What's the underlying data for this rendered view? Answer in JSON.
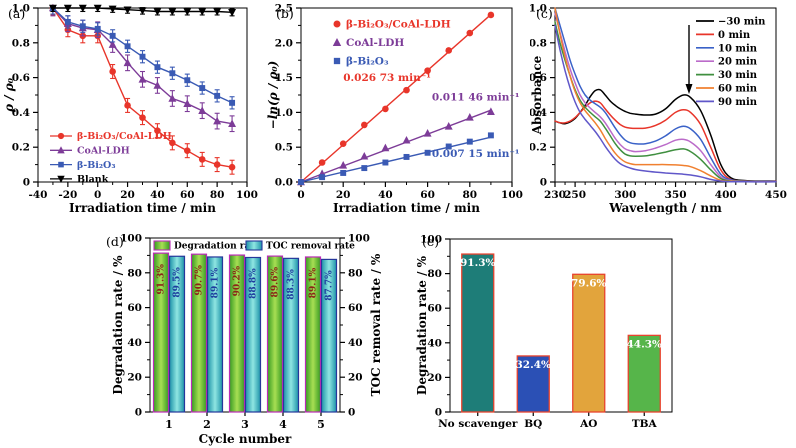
{
  "figure": {
    "background": "#ffffff"
  },
  "chart_data": [
    {
      "id": "a",
      "label": "(a)",
      "type": "line",
      "kind": "xy",
      "xlabel": "Irradiation time / min",
      "ylabel": "ρ / ρ₀",
      "xlim": [
        -40,
        100
      ],
      "ylim": [
        0,
        1.0
      ],
      "xticks": [
        -40,
        -20,
        0,
        20,
        40,
        60,
        80,
        100
      ],
      "xtick_labels": [
        "-40",
        "-20",
        "0",
        "20",
        "40",
        "60",
        "80",
        "100"
      ],
      "yticks": [
        0,
        0.2,
        0.4,
        0.6,
        0.8,
        1.0
      ],
      "ytick_labels": [
        "0",
        "0.2",
        "0.4",
        "0.6",
        "0.8",
        "1.0"
      ],
      "x": [
        -30,
        -20,
        -10,
        0,
        10,
        20,
        30,
        40,
        50,
        60,
        70,
        80,
        90
      ],
      "series": [
        {
          "name": "β-Bi₂O₃/CoAl-LDH",
          "color": "#e8352a",
          "marker": "circle",
          "values": [
            1.0,
            0.875,
            0.84,
            0.84,
            0.635,
            0.44,
            0.37,
            0.295,
            0.225,
            0.18,
            0.13,
            0.1,
            0.085
          ],
          "err": 0.04
        },
        {
          "name": "CoAl-LDH",
          "color": "#7d3c98",
          "marker": "triangle-up",
          "values": [
            1.0,
            0.91,
            0.885,
            0.875,
            0.79,
            0.685,
            0.59,
            0.555,
            0.48,
            0.45,
            0.41,
            0.35,
            0.335
          ],
          "err": 0.045
        },
        {
          "name": "β-Bi₂O₃",
          "color": "#3a5ab4",
          "marker": "square",
          "values": [
            1.0,
            0.92,
            0.895,
            0.88,
            0.84,
            0.78,
            0.72,
            0.66,
            0.625,
            0.585,
            0.54,
            0.495,
            0.455
          ],
          "err": 0.035
        },
        {
          "name": "Blank",
          "color": "#000000",
          "marker": "triangle-down",
          "values": [
            1.0,
            1.0,
            1.0,
            1.0,
            0.995,
            0.99,
            0.985,
            0.98,
            0.98,
            0.98,
            0.98,
            0.98,
            0.975
          ],
          "err": 0.02
        }
      ]
    },
    {
      "id": "b",
      "label": "(b)",
      "type": "line",
      "kind": "xy",
      "xlabel": "Irradiation time / min",
      "ylabel": "−ln(ρ / ρ₀)",
      "xlim": [
        0,
        100
      ],
      "ylim": [
        0,
        2.5
      ],
      "xticks": [
        0,
        20,
        40,
        60,
        80,
        100
      ],
      "xtick_labels": [
        "0",
        "20",
        "40",
        "60",
        "80",
        "100"
      ],
      "yticks": [
        0,
        0.5,
        1.0,
        1.5,
        2.0,
        2.5
      ],
      "ytick_labels": [
        "0.0",
        "0.5",
        "1.0",
        "1.5",
        "2.0",
        "2.5"
      ],
      "x": [
        0,
        10,
        20,
        30,
        40,
        50,
        60,
        70,
        80,
        90
      ],
      "series": [
        {
          "name": "β-Bi₂O₃/CoAl-LDH",
          "color": "#e8352a",
          "marker": "circle",
          "values": [
            0,
            0.28,
            0.55,
            0.82,
            1.05,
            1.32,
            1.6,
            1.89,
            2.14,
            2.4
          ],
          "fit_slope": 0.02673
        },
        {
          "name": "CoAl-LDH",
          "color": "#7d3c98",
          "marker": "triangle-up",
          "values": [
            0,
            0.12,
            0.24,
            0.37,
            0.49,
            0.6,
            0.7,
            0.8,
            0.93,
            1.01
          ],
          "fit_slope": 0.01146
        },
        {
          "name": "β-Bi₂O₃",
          "color": "#3a5ab4",
          "marker": "square",
          "values": [
            0,
            0.07,
            0.13,
            0.2,
            0.28,
            0.36,
            0.42,
            0.51,
            0.58,
            0.67
          ],
          "fit_slope": 0.00715
        }
      ],
      "annotations": [
        {
          "text": "0.026 73 min⁻¹",
          "x": 20,
          "y": 1.45,
          "color": "#e8352a"
        },
        {
          "text": "0.011 46 min⁻¹",
          "x": 62,
          "y": 1.17,
          "color": "#7d3c98"
        },
        {
          "text": "0.007 15 min⁻¹",
          "x": 62,
          "y": 0.36,
          "color": "#3a5ab4"
        }
      ]
    },
    {
      "id": "c",
      "label": "(c)",
      "type": "line",
      "kind": "spectra",
      "xlabel": "Wavelength / nm",
      "ylabel": "Absorbance",
      "xlim": [
        230,
        450
      ],
      "ylim": [
        0,
        1.0
      ],
      "xticks": [
        230,
        250,
        300,
        350,
        400,
        450
      ],
      "xtick_labels": [
        "230",
        "250",
        "300",
        "350",
        "400",
        "450"
      ],
      "yticks": [
        0,
        0.2,
        0.4,
        0.6,
        0.8,
        1.0
      ],
      "ytick_labels": [
        "0",
        "0.2",
        "0.4",
        "0.6",
        "0.8",
        "1.0"
      ],
      "x": [
        230,
        235,
        240,
        245,
        250,
        255,
        260,
        265,
        270,
        275,
        280,
        285,
        290,
        295,
        300,
        305,
        310,
        320,
        330,
        340,
        350,
        358,
        365,
        375,
        385,
        395,
        405,
        420,
        450
      ],
      "curves": [
        {
          "name": "−30 min",
          "color": "#000000",
          "values": [
            0.35,
            0.34,
            0.335,
            0.345,
            0.365,
            0.4,
            0.44,
            0.49,
            0.525,
            0.53,
            0.5,
            0.465,
            0.44,
            0.42,
            0.405,
            0.395,
            0.39,
            0.385,
            0.39,
            0.42,
            0.475,
            0.5,
            0.485,
            0.41,
            0.27,
            0.1,
            0.025,
            0.008,
            0.005
          ]
        },
        {
          "name": "0 min",
          "color": "#e8352a",
          "values": [
            0.35,
            0.34,
            0.34,
            0.35,
            0.37,
            0.4,
            0.43,
            0.455,
            0.465,
            0.455,
            0.42,
            0.385,
            0.355,
            0.33,
            0.315,
            0.31,
            0.308,
            0.31,
            0.325,
            0.355,
            0.4,
            0.415,
            0.4,
            0.33,
            0.2,
            0.07,
            0.015,
            0.006,
            0.004
          ]
        },
        {
          "name": "10 min",
          "color": "#3a62c8",
          "values": [
            1.0,
            0.9,
            0.8,
            0.7,
            0.62,
            0.55,
            0.5,
            0.47,
            0.45,
            0.43,
            0.4,
            0.355,
            0.31,
            0.27,
            0.24,
            0.225,
            0.22,
            0.22,
            0.235,
            0.265,
            0.305,
            0.32,
            0.305,
            0.245,
            0.14,
            0.045,
            0.012,
            0.005,
            0.003
          ]
        },
        {
          "name": "20 min",
          "color": "#bb6bc9",
          "values": [
            0.97,
            0.86,
            0.75,
            0.65,
            0.57,
            0.5,
            0.455,
            0.425,
            0.4,
            0.375,
            0.34,
            0.295,
            0.25,
            0.215,
            0.19,
            0.18,
            0.175,
            0.18,
            0.195,
            0.215,
            0.24,
            0.245,
            0.23,
            0.18,
            0.1,
            0.03,
            0.008,
            0.004,
            0.002
          ]
        },
        {
          "name": "30 min",
          "color": "#3f8f3f",
          "values": [
            0.92,
            0.8,
            0.7,
            0.61,
            0.53,
            0.47,
            0.43,
            0.4,
            0.375,
            0.35,
            0.31,
            0.265,
            0.22,
            0.185,
            0.16,
            0.15,
            0.148,
            0.15,
            0.16,
            0.172,
            0.185,
            0.19,
            0.175,
            0.13,
            0.07,
            0.02,
            0.006,
            0.003,
            0.002
          ]
        },
        {
          "name": "60 min",
          "color": "#f08030",
          "values": [
            1.0,
            0.85,
            0.72,
            0.61,
            0.52,
            0.455,
            0.41,
            0.375,
            0.34,
            0.3,
            0.25,
            0.205,
            0.165,
            0.135,
            0.115,
            0.105,
            0.1,
            0.1,
            0.1,
            0.1,
            0.098,
            0.095,
            0.088,
            0.065,
            0.035,
            0.01,
            0.004,
            0.002,
            0.001
          ]
        },
        {
          "name": "90 min",
          "color": "#6057c9",
          "values": [
            0.9,
            0.76,
            0.64,
            0.54,
            0.46,
            0.4,
            0.36,
            0.325,
            0.29,
            0.25,
            0.205,
            0.165,
            0.13,
            0.105,
            0.09,
            0.08,
            0.072,
            0.063,
            0.057,
            0.052,
            0.048,
            0.045,
            0.04,
            0.03,
            0.015,
            0.005,
            0.002,
            0.001,
            0.001
          ]
        }
      ]
    },
    {
      "id": "d",
      "label": "(d)",
      "type": "bar",
      "kind": "dualbar",
      "xlabel": "Cycle number",
      "ylabel_left": "Degradation rate / %",
      "ylabel_right": "TOC removal rate / %",
      "ylim": [
        0,
        100
      ],
      "yticks": [
        0,
        20,
        40,
        60,
        80,
        100
      ],
      "ytick_labels": [
        "0",
        "20",
        "40",
        "60",
        "80",
        "100"
      ],
      "categories": [
        "1",
        "2",
        "3",
        "4",
        "5"
      ],
      "series": [
        {
          "name": "Degradation rate",
          "values": [
            91.3,
            90.7,
            90.2,
            89.6,
            89.1
          ],
          "value_labels": [
            "91.3%",
            "90.7%",
            "90.2%",
            "89.6%",
            "89.1%"
          ],
          "fill_edge": "#379b22",
          "fill_center": "#a8df53",
          "border": "#bb2cb8",
          "label_color": "#8b2517"
        },
        {
          "name": "TOC removal rate",
          "values": [
            89.5,
            89.1,
            88.8,
            88.3,
            87.7
          ],
          "value_labels": [
            "89.5%",
            "89.1%",
            "88.8%",
            "88.3%",
            "87.7%"
          ],
          "fill_edge": "#1d92a8",
          "fill_center": "#8fe6e2",
          "border": "#26379b",
          "label_color": "#1e3d9e"
        }
      ]
    },
    {
      "id": "e",
      "label": "(e)",
      "type": "bar",
      "kind": "bar",
      "ylabel": "Degradation rate / %",
      "ylim": [
        0,
        100
      ],
      "yticks": [
        0,
        20,
        40,
        60,
        80,
        100
      ],
      "ytick_labels": [
        "0",
        "20",
        "40",
        "60",
        "80",
        "100"
      ],
      "categories": [
        "No scavenger",
        "BQ",
        "AO",
        "TBA"
      ],
      "values": [
        91.3,
        32.4,
        79.6,
        44.3
      ],
      "value_labels": [
        "91.3%",
        "32.4%",
        "79.6%",
        "44.3%"
      ],
      "colors": [
        "#1e7d78",
        "#2b50b5",
        "#e2a43c",
        "#56b54a"
      ],
      "border": "#e8432e",
      "value_label_color": "#ffffff"
    }
  ]
}
